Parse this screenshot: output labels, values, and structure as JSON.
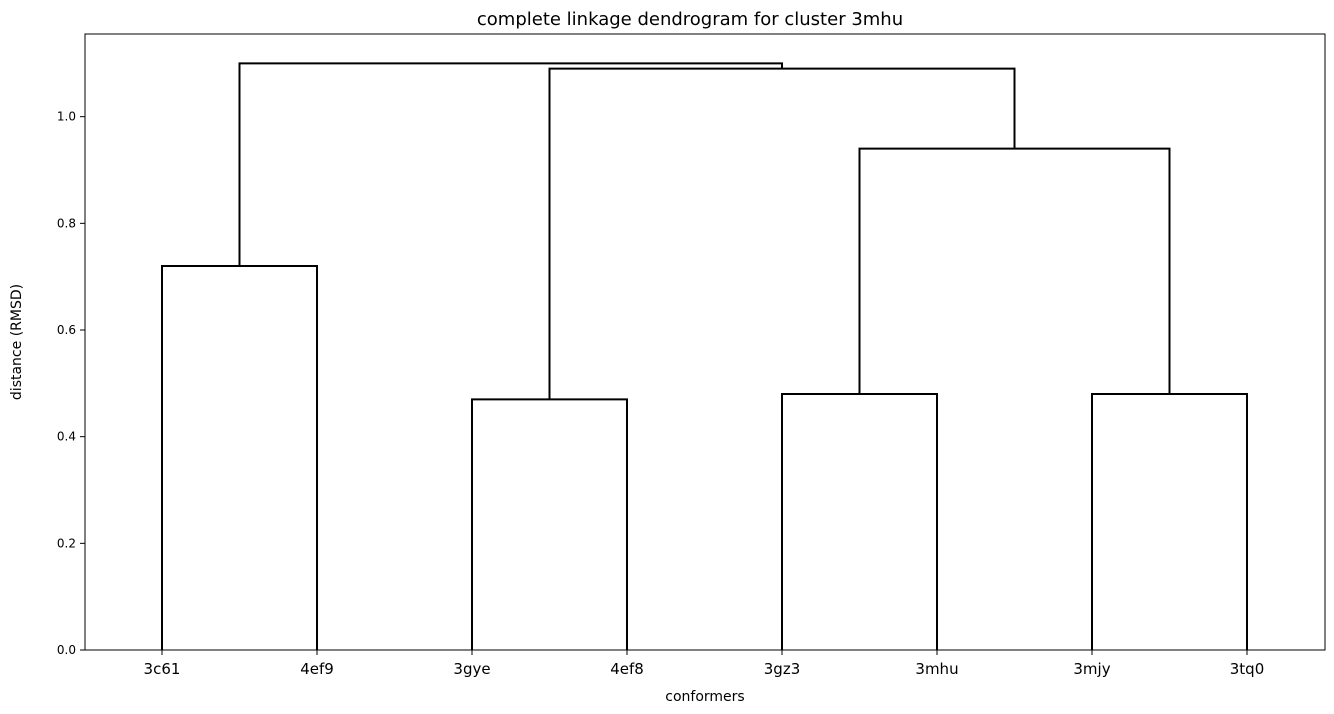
{
  "chart_data": {
    "type": "dendrogram",
    "title": "complete linkage dendrogram for cluster 3mhu",
    "xlabel": "conformers",
    "ylabel": "distance (RMSD)",
    "ylim": [
      0,
      1.155
    ],
    "yticks": [
      "0.0",
      "0.2",
      "0.4",
      "0.6",
      "0.8",
      "1.0"
    ],
    "leaves": [
      "3c61",
      "4ef9",
      "3gye",
      "4ef8",
      "3gz3",
      "3mhu",
      "3mjy",
      "3tq0"
    ],
    "merges": [
      {
        "left": "3c61",
        "right": "4ef9",
        "height": 0.72
      },
      {
        "left": "3gye",
        "right": "4ef8",
        "height": 0.47
      },
      {
        "left": "3gz3",
        "right": "3mhu",
        "height": 0.48
      },
      {
        "left": "3mjy",
        "right": "3tq0",
        "height": 0.48
      },
      {
        "left": "(3gz3,3mhu)",
        "right": "(3mjy,3tq0)",
        "height": 0.94
      },
      {
        "left": "(3gye,4ef8)",
        "right": "((3gz3,3mhu),(3mjy,3tq0))",
        "height": 1.09
      },
      {
        "left": "(3c61,4ef9)",
        "right": "((3gye,4ef8),((3gz3,3mhu),(3mjy,3tq0)))",
        "height": 1.1
      }
    ],
    "grid": false,
    "color": "#000000"
  }
}
